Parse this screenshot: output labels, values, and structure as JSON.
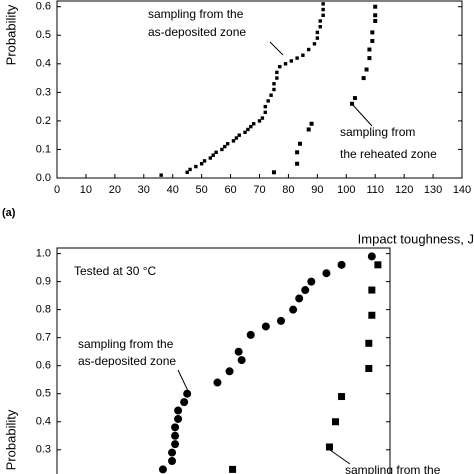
{
  "chart_data": [
    {
      "type": "scatter",
      "y_label": "Probability",
      "x_label": "Impact toughness, J",
      "panel_label": "(a)",
      "xlim": [
        0,
        140
      ],
      "xticks": [
        0,
        10,
        20,
        30,
        40,
        50,
        60,
        70,
        80,
        90,
        100,
        110,
        120,
        130,
        140
      ],
      "ylim": [
        0,
        0.62
      ],
      "yticks": [
        {
          "value": 0,
          "label": "0.0"
        },
        0.1,
        0.2,
        0.3,
        0.4,
        0.5,
        0.6
      ],
      "annotations": [
        [
          "sampling from the",
          "as-deposited zone"
        ],
        [
          "sampling from",
          "the reheated zone"
        ]
      ],
      "series": [
        {
          "color": "#000000",
          "marker": "dot",
          "x": [
            36,
            45,
            46,
            48,
            50,
            51,
            53,
            54,
            55,
            57,
            58,
            59,
            61,
            62,
            63,
            65,
            66,
            67,
            68,
            70,
            71,
            72,
            72,
            73,
            74,
            75,
            75,
            76,
            76,
            77,
            79,
            81,
            83,
            85,
            87,
            89,
            90,
            90,
            91,
            91,
            92,
            92,
            92
          ],
          "values": [
            0.01,
            0.02,
            0.03,
            0.04,
            0.05,
            0.06,
            0.07,
            0.08,
            0.09,
            0.1,
            0.11,
            0.12,
            0.13,
            0.14,
            0.15,
            0.16,
            0.17,
            0.18,
            0.19,
            0.2,
            0.21,
            0.23,
            0.25,
            0.27,
            0.29,
            0.31,
            0.33,
            0.35,
            0.37,
            0.39,
            0.4,
            0.41,
            0.42,
            0.43,
            0.45,
            0.47,
            0.49,
            0.51,
            0.53,
            0.55,
            0.57,
            0.59,
            0.61
          ]
        },
        {
          "color": "#000000",
          "marker": "square",
          "x": [
            75,
            83,
            83,
            84,
            87,
            88,
            102,
            103,
            106,
            107,
            108,
            108,
            109,
            109,
            110,
            110,
            110
          ],
          "values": [
            0.02,
            0.05,
            0.09,
            0.12,
            0.17,
            0.19,
            0.26,
            0.28,
            0.35,
            0.38,
            0.42,
            0.45,
            0.48,
            0.51,
            0.55,
            0.57,
            0.6
          ]
        }
      ]
    },
    {
      "type": "scatter",
      "y_label": "Probability",
      "note": "Tested at 30 °C",
      "xlim": [
        20,
        130
      ],
      "ylim": [
        0.21,
        1.02
      ],
      "yticks": [
        {
          "value": 1,
          "label": "1.0"
        },
        0.9,
        0.8,
        0.7,
        0.6,
        0.5,
        0.4,
        0.3
      ],
      "annotations": [
        [
          "sampling from the",
          "as-deposited zone"
        ],
        [
          "sampling from the"
        ]
      ],
      "series": [
        {
          "color": "#000000",
          "marker": "circle",
          "x": [
            124,
            114,
            109,
            104,
            102,
            100,
            98,
            94,
            89,
            84,
            80,
            81,
            77,
            73,
            63,
            62,
            60,
            60,
            59,
            59,
            59,
            58,
            58,
            55
          ],
          "values": [
            0.99,
            0.96,
            0.93,
            0.9,
            0.87,
            0.84,
            0.8,
            0.76,
            0.74,
            0.71,
            0.65,
            0.62,
            0.58,
            0.54,
            0.5,
            0.47,
            0.44,
            0.41,
            0.38,
            0.35,
            0.32,
            0.29,
            0.26,
            0.23
          ]
        },
        {
          "color": "#000000",
          "marker": "bigsquare",
          "x": [
            126,
            124,
            124,
            123,
            123,
            114,
            112,
            110,
            78
          ],
          "values": [
            0.96,
            0.87,
            0.78,
            0.68,
            0.59,
            0.49,
            0.4,
            0.31,
            0.23
          ]
        }
      ]
    }
  ]
}
